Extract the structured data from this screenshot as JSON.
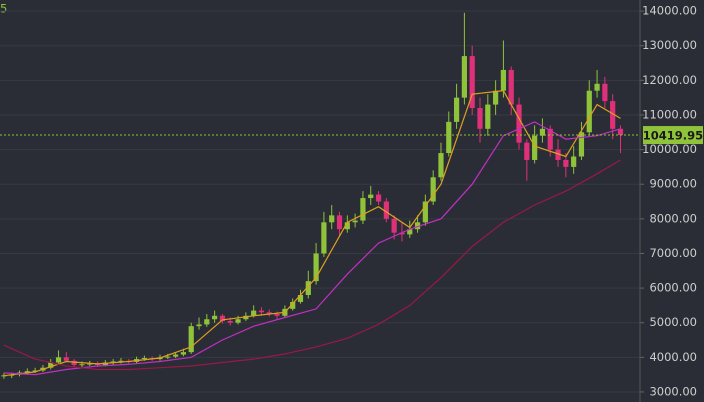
{
  "chart_data": {
    "type": "candlestick",
    "corner_text": "5",
    "up_color": "#8fc33a",
    "down_color": "#e0307a",
    "xlim": [
      -0.5,
      81.5
    ],
    "ylim": [
      2710,
      14320
    ],
    "yticks": [
      {
        "value": 3000,
        "label": "3000.00"
      },
      {
        "value": 4000,
        "label": "4000.00"
      },
      {
        "value": 5000,
        "label": "5000.00"
      },
      {
        "value": 6000,
        "label": "6000.00"
      },
      {
        "value": 7000,
        "label": "7000.00"
      },
      {
        "value": 8000,
        "label": "8000.00"
      },
      {
        "value": 9000,
        "label": "9000.00"
      },
      {
        "value": 10000,
        "label": "10000.00"
      },
      {
        "value": 11000,
        "label": "11000.00"
      },
      {
        "value": 12000,
        "label": "12000.00"
      },
      {
        "value": 13000,
        "label": "13000.00"
      },
      {
        "value": 14000,
        "label": "14000.00"
      }
    ],
    "grid": true,
    "last_price": 10419.95,
    "last_price_color": "#8fc33a",
    "ohlc": {
      "open": [
        3450,
        3480,
        3500,
        3560,
        3600,
        3620,
        3700,
        3850,
        4000,
        3900,
        3780,
        3800,
        3820,
        3780,
        3850,
        3880,
        3900,
        3870,
        3950,
        3980,
        3950,
        4000,
        4020,
        4080,
        4150,
        4900,
        4950,
        5100,
        5200,
        5050,
        5000,
        5100,
        5200,
        5350,
        5300,
        5250,
        5200,
        5400,
        5600,
        5800,
        6200,
        7000,
        7900,
        8100,
        7700,
        7900,
        7950,
        8600,
        8700,
        8500,
        8000,
        7600,
        7550,
        7700,
        7900,
        8500,
        9200,
        9900,
        10800,
        11500,
        12700,
        11200,
        10600,
        11300,
        11700,
        12300,
        11300,
        10200,
        9700,
        10400,
        10600,
        10000,
        9700,
        9500,
        9800,
        10500,
        11700,
        11900,
        11400,
        10600
      ],
      "high": [
        3550,
        3560,
        3620,
        3680,
        3700,
        3780,
        3950,
        4200,
        4150,
        3950,
        3880,
        3900,
        3880,
        3920,
        3950,
        3980,
        3950,
        4020,
        4050,
        4030,
        4080,
        4100,
        4150,
        4250,
        5000,
        5150,
        5250,
        5350,
        5250,
        5150,
        5200,
        5300,
        5500,
        5450,
        5380,
        5320,
        5500,
        5700,
        5950,
        6500,
        7300,
        8200,
        8400,
        8200,
        8100,
        8150,
        8800,
        8950,
        8800,
        8600,
        8100,
        7900,
        7950,
        8100,
        8700,
        9400,
        10200,
        11100,
        11900,
        13950,
        13000,
        11500,
        11600,
        12000,
        13150,
        12400,
        11500,
        10300,
        10700,
        10900,
        10700,
        10300,
        9900,
        10100,
        10800,
        12000,
        12300,
        12100,
        11600,
        10700
      ],
      "low": [
        3380,
        3400,
        3450,
        3500,
        3550,
        3580,
        3650,
        3800,
        3850,
        3720,
        3720,
        3750,
        3720,
        3740,
        3790,
        3820,
        3820,
        3830,
        3900,
        3900,
        3900,
        3950,
        3980,
        4030,
        4100,
        4800,
        4880,
        5000,
        4980,
        4920,
        4950,
        5050,
        5150,
        5200,
        5180,
        5100,
        5150,
        5350,
        5550,
        5700,
        6100,
        6900,
        7700,
        7500,
        7600,
        7750,
        7850,
        8400,
        8400,
        7900,
        7400,
        7350,
        7450,
        7600,
        7800,
        8400,
        9100,
        9800,
        10600,
        11300,
        11000,
        10200,
        10400,
        11000,
        11500,
        11000,
        10000,
        9100,
        9600,
        10200,
        9800,
        9500,
        9200,
        9300,
        9700,
        10400,
        11500,
        11200,
        10300,
        9900
      ],
      "close": [
        3480,
        3500,
        3560,
        3600,
        3620,
        3700,
        3850,
        4000,
        3900,
        3780,
        3800,
        3820,
        3780,
        3850,
        3880,
        3900,
        3870,
        3950,
        3980,
        3950,
        4000,
        4020,
        4080,
        4150,
        4900,
        4950,
        5100,
        5200,
        5050,
        5000,
        5100,
        5200,
        5350,
        5300,
        5250,
        5200,
        5400,
        5600,
        5800,
        6200,
        7000,
        7900,
        8100,
        7700,
        7900,
        7950,
        8600,
        8700,
        8500,
        8000,
        7600,
        7550,
        7700,
        7900,
        8500,
        9200,
        9900,
        10800,
        11500,
        12700,
        11200,
        10600,
        11300,
        11700,
        12300,
        11300,
        10200,
        9700,
        10400,
        10600,
        10000,
        9700,
        9500,
        9800,
        10500,
        11700,
        11900,
        11400,
        10600,
        10420
      ]
    },
    "series": [
      {
        "color": "#e0a020",
        "x": [
          0,
          4,
          8,
          12,
          16,
          20,
          24,
          28,
          32,
          36,
          40,
          44,
          48,
          52,
          56,
          60,
          64,
          68,
          72,
          76,
          79
        ],
        "values": [
          3470,
          3580,
          3880,
          3810,
          3880,
          3980,
          4300,
          5080,
          5200,
          5300,
          6300,
          7900,
          8350,
          7750,
          9000,
          11600,
          11700,
          10100,
          9800,
          11300,
          10900
        ]
      },
      {
        "color": "#c030c0",
        "x": [
          0,
          4,
          8,
          12,
          16,
          20,
          24,
          28,
          32,
          36,
          40,
          44,
          48,
          52,
          56,
          60,
          64,
          68,
          72,
          76,
          79
        ],
        "values": [
          3550,
          3500,
          3650,
          3750,
          3800,
          3880,
          4000,
          4500,
          4900,
          5150,
          5400,
          6400,
          7300,
          7700,
          8000,
          9000,
          10400,
          10800,
          10300,
          10400,
          10600
        ]
      },
      {
        "color": "#9a1848",
        "x": [
          0,
          4,
          8,
          12,
          16,
          20,
          24,
          28,
          32,
          36,
          40,
          44,
          48,
          52,
          56,
          60,
          64,
          68,
          72,
          76,
          79
        ],
        "values": [
          4350,
          3950,
          3750,
          3650,
          3650,
          3700,
          3750,
          3850,
          3950,
          4100,
          4300,
          4550,
          4950,
          5500,
          6300,
          7200,
          7900,
          8400,
          8800,
          9300,
          9700
        ]
      }
    ]
  }
}
